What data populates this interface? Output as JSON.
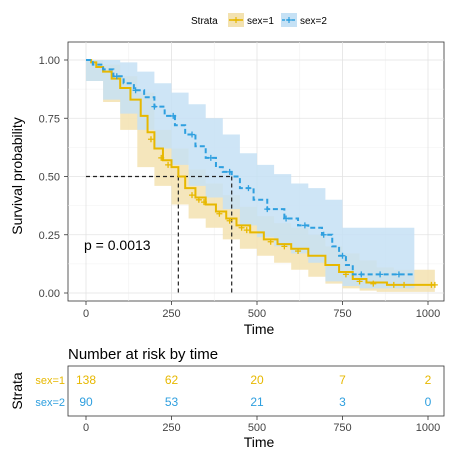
{
  "chart_data": {
    "type": "line",
    "subtype": "kaplan-meier",
    "legend": {
      "title": "Strata",
      "position": "top"
    },
    "xlabel": "Time",
    "ylabel": "Survival probability",
    "xlim": [
      0,
      1000
    ],
    "ylim": [
      0,
      1
    ],
    "x_ticks": [
      0,
      250,
      500,
      750,
      1000
    ],
    "y_ticks": [
      0.0,
      0.25,
      0.5,
      0.75,
      1.0
    ],
    "x_tick_labels": [
      "0",
      "250",
      "500",
      "750",
      "1000"
    ],
    "y_tick_labels": [
      "0.00",
      "0.25",
      "0.50",
      "0.75",
      "1.00"
    ],
    "grid": true,
    "pvalue_text": "p = 0.0013",
    "median_survival": [
      270,
      426
    ],
    "series": [
      {
        "name": "sex=1",
        "color": "#E7B800",
        "fill": "#F3E2B0",
        "line_style": "solid",
        "points": [
          [
            0,
            1.0
          ],
          [
            15,
            0.99
          ],
          [
            30,
            0.97
          ],
          [
            50,
            0.95
          ],
          [
            75,
            0.92
          ],
          [
            100,
            0.88
          ],
          [
            130,
            0.83
          ],
          [
            160,
            0.76
          ],
          [
            180,
            0.69
          ],
          [
            200,
            0.62
          ],
          [
            225,
            0.57
          ],
          [
            250,
            0.54
          ],
          [
            270,
            0.5
          ],
          [
            290,
            0.45
          ],
          [
            320,
            0.41
          ],
          [
            350,
            0.38
          ],
          [
            380,
            0.35
          ],
          [
            410,
            0.32
          ],
          [
            440,
            0.29
          ],
          [
            480,
            0.26
          ],
          [
            520,
            0.23
          ],
          [
            560,
            0.21
          ],
          [
            600,
            0.19
          ],
          [
            650,
            0.16
          ],
          [
            700,
            0.12
          ],
          [
            740,
            0.09
          ],
          [
            780,
            0.06
          ],
          [
            820,
            0.045
          ],
          [
            880,
            0.035
          ],
          [
            960,
            0.035
          ],
          [
            1020,
            0.035
          ]
        ],
        "ci_upper": [
          [
            0,
            1.0
          ],
          [
            50,
            0.98
          ],
          [
            100,
            0.93
          ],
          [
            150,
            0.86
          ],
          [
            200,
            0.7
          ],
          [
            250,
            0.62
          ],
          [
            300,
            0.53
          ],
          [
            350,
            0.47
          ],
          [
            400,
            0.42
          ],
          [
            450,
            0.37
          ],
          [
            500,
            0.33
          ],
          [
            550,
            0.3
          ],
          [
            600,
            0.28
          ],
          [
            650,
            0.25
          ],
          [
            700,
            0.2
          ],
          [
            750,
            0.17
          ],
          [
            800,
            0.14
          ],
          [
            850,
            0.11
          ],
          [
            900,
            0.1
          ],
          [
            960,
            0.1
          ],
          [
            1020,
            0.1
          ]
        ],
        "ci_lower": [
          [
            0,
            0.97
          ],
          [
            50,
            0.91
          ],
          [
            100,
            0.82
          ],
          [
            150,
            0.7
          ],
          [
            200,
            0.54
          ],
          [
            250,
            0.46
          ],
          [
            300,
            0.38
          ],
          [
            350,
            0.32
          ],
          [
            400,
            0.28
          ],
          [
            450,
            0.23
          ],
          [
            500,
            0.19
          ],
          [
            550,
            0.16
          ],
          [
            600,
            0.13
          ],
          [
            650,
            0.1
          ],
          [
            700,
            0.07
          ],
          [
            750,
            0.04
          ],
          [
            800,
            0.02
          ],
          [
            850,
            0.01
          ],
          [
            900,
            0.005
          ],
          [
            960,
            0.005
          ],
          [
            1020,
            0.005
          ]
        ],
        "censor_points": [
          [
            190,
            0.66
          ],
          [
            220,
            0.58
          ],
          [
            240,
            0.55
          ],
          [
            310,
            0.42
          ],
          [
            330,
            0.4
          ],
          [
            345,
            0.39
          ],
          [
            390,
            0.34
          ],
          [
            420,
            0.31
          ],
          [
            455,
            0.28
          ],
          [
            470,
            0.27
          ],
          [
            540,
            0.22
          ],
          [
            580,
            0.2
          ],
          [
            620,
            0.18
          ],
          [
            760,
            0.08
          ],
          [
            800,
            0.05
          ],
          [
            840,
            0.04
          ],
          [
            900,
            0.035
          ],
          [
            930,
            0.035
          ],
          [
            1010,
            0.035
          ],
          [
            1020,
            0.035
          ]
        ]
      },
      {
        "name": "sex=2",
        "color": "#2E9FDF",
        "fill": "#C5E1F5",
        "line_style": "dashed",
        "points": [
          [
            0,
            1.0
          ],
          [
            20,
            0.98
          ],
          [
            50,
            0.96
          ],
          [
            80,
            0.93
          ],
          [
            110,
            0.9
          ],
          [
            140,
            0.87
          ],
          [
            170,
            0.84
          ],
          [
            200,
            0.8
          ],
          [
            230,
            0.76
          ],
          [
            260,
            0.72
          ],
          [
            290,
            0.68
          ],
          [
            320,
            0.63
          ],
          [
            350,
            0.58
          ],
          [
            380,
            0.54
          ],
          [
            400,
            0.52
          ],
          [
            426,
            0.5
          ],
          [
            450,
            0.45
          ],
          [
            490,
            0.4
          ],
          [
            530,
            0.36
          ],
          [
            580,
            0.32
          ],
          [
            620,
            0.29
          ],
          [
            650,
            0.28
          ],
          [
            690,
            0.25
          ],
          [
            720,
            0.2
          ],
          [
            740,
            0.16
          ],
          [
            760,
            0.12
          ],
          [
            780,
            0.08
          ],
          [
            820,
            0.08
          ],
          [
            880,
            0.08
          ],
          [
            950,
            0.08
          ],
          [
            960,
            0.08
          ]
        ],
        "ci_upper": [
          [
            0,
            1.0
          ],
          [
            50,
            1.0
          ],
          [
            100,
            0.99
          ],
          [
            150,
            0.95
          ],
          [
            200,
            0.9
          ],
          [
            250,
            0.86
          ],
          [
            300,
            0.81
          ],
          [
            350,
            0.75
          ],
          [
            400,
            0.68
          ],
          [
            450,
            0.6
          ],
          [
            500,
            0.55
          ],
          [
            550,
            0.51
          ],
          [
            600,
            0.47
          ],
          [
            650,
            0.45
          ],
          [
            700,
            0.4
          ],
          [
            750,
            0.28
          ],
          [
            800,
            0.28
          ],
          [
            850,
            0.28
          ],
          [
            900,
            0.28
          ],
          [
            960,
            0.28
          ]
        ],
        "ci_lower": [
          [
            0,
            0.97
          ],
          [
            50,
            0.91
          ],
          [
            100,
            0.83
          ],
          [
            150,
            0.77
          ],
          [
            200,
            0.7
          ],
          [
            250,
            0.62
          ],
          [
            300,
            0.55
          ],
          [
            350,
            0.46
          ],
          [
            400,
            0.41
          ],
          [
            450,
            0.36
          ],
          [
            500,
            0.29
          ],
          [
            550,
            0.24
          ],
          [
            600,
            0.2
          ],
          [
            650,
            0.17
          ],
          [
            700,
            0.13
          ],
          [
            750,
            0.05
          ],
          [
            800,
            0.03
          ],
          [
            850,
            0.02
          ],
          [
            900,
            0.02
          ],
          [
            960,
            0.02
          ]
        ]
      }
    ]
  },
  "risk_table": {
    "title": "Number at risk by time",
    "ylabel": "Strata",
    "xlabel": "Time",
    "rows": [
      {
        "label": "sex=1",
        "color": "#E7B800",
        "values": [
          "138",
          "62",
          "20",
          "7",
          "2"
        ]
      },
      {
        "label": "sex=2",
        "color": "#2E9FDF",
        "values": [
          "90",
          "53",
          "21",
          "3",
          "0"
        ]
      }
    ],
    "x_values": [
      0,
      250,
      500,
      750,
      1000
    ],
    "x_tick_labels": [
      "0",
      "250",
      "500",
      "750",
      "1000"
    ]
  }
}
